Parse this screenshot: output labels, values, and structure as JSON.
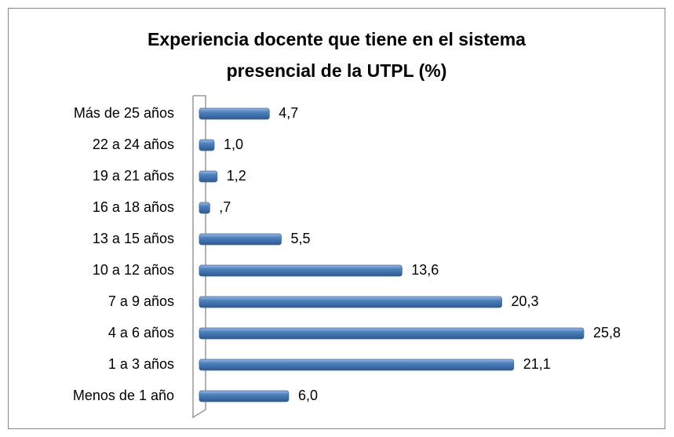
{
  "chart_data": {
    "type": "bar",
    "orientation": "horizontal",
    "title": "Experiencia docente que tiene en el sistema presencial de la UTPL (%)",
    "categories": [
      "Más de 25 años",
      "22 a 24 años",
      "19 a 21 años",
      "16 a 18 años",
      "13 a 15 años",
      "10 a 12 años",
      "7 a 9 años",
      "4 a 6 años",
      "1 a 3 años",
      "Menos de 1 año"
    ],
    "values": [
      4.7,
      1.0,
      1.2,
      0.7,
      5.5,
      13.6,
      20.3,
      25.8,
      21.1,
      6.0
    ],
    "value_labels": [
      "4,7",
      "1,0",
      "1,2",
      ",7",
      "5,5",
      "13,6",
      "20,3",
      "25,8",
      "21,1",
      "6,0"
    ],
    "color": "#4f81bd"
  }
}
